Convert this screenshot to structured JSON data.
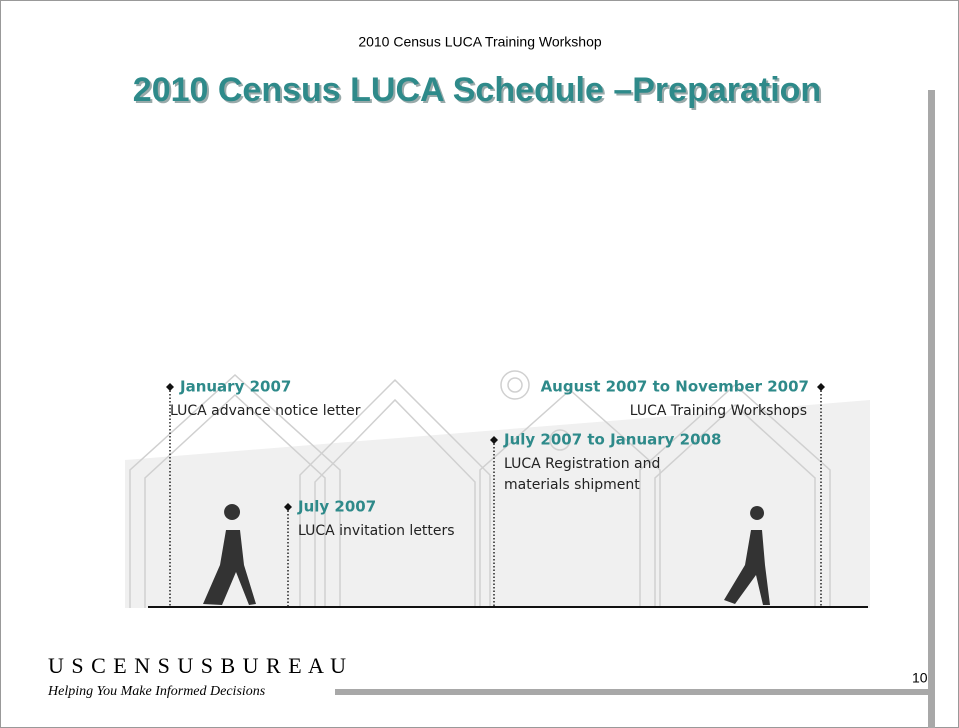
{
  "header": {
    "subtitle": "2010 Census LUCA Training Workshop",
    "title": "2010 Census LUCA Schedule –Preparation"
  },
  "timeline": {
    "events": [
      {
        "date": "January  2007",
        "lines": [
          "LUCA advance notice letter"
        ]
      },
      {
        "date": "July 2007",
        "lines": [
          "LUCA invitation letters"
        ]
      },
      {
        "date": "July 2007 to January 2008",
        "lines": [
          "LUCA Registration and",
          "materials shipment"
        ]
      },
      {
        "date": "August 2007 to November 2007",
        "lines": [
          "LUCA Training Workshops"
        ]
      }
    ]
  },
  "footer": {
    "brand": "U S C E N S U S B U R E A U",
    "tagline": "Helping You Make Informed Decisions",
    "page_number": "10"
  }
}
